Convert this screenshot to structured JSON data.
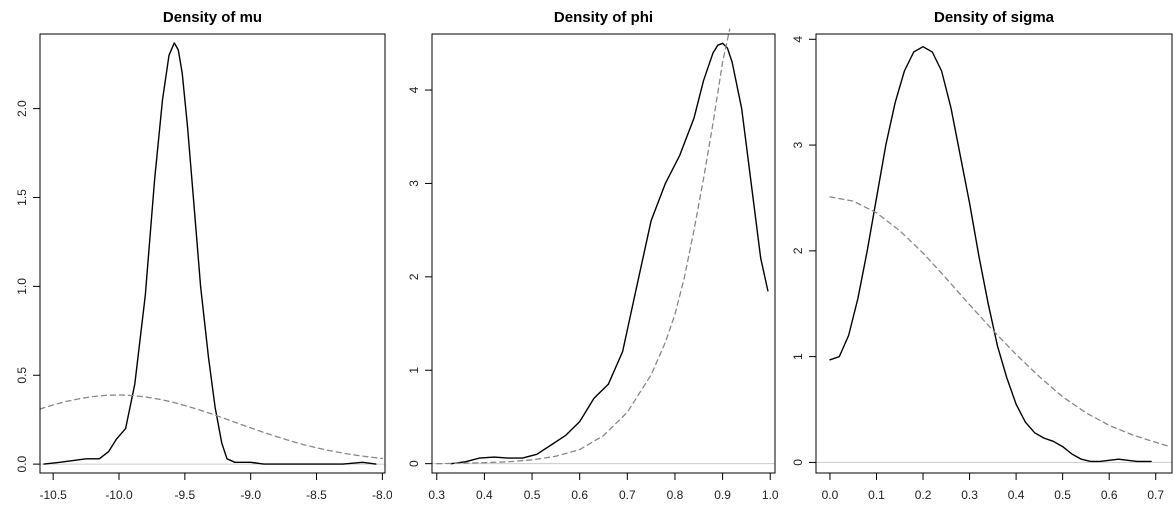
{
  "chart_data": [
    {
      "type": "line",
      "title": "Density of mu",
      "xlabel": "",
      "ylabel": "",
      "xlim": [
        -10.6,
        -7.98
      ],
      "ylim": [
        -0.05,
        2.42
      ],
      "xticks": [
        -10.5,
        -10.0,
        -9.5,
        -9.0,
        -8.5,
        -8.0
      ],
      "xtick_labels": [
        "-10.5",
        "-10.0",
        "-9.5",
        "-9.0",
        "-8.5",
        "-8.0"
      ],
      "yticks": [
        0.0,
        0.5,
        1.0,
        1.5,
        2.0
      ],
      "ytick_labels": [
        "0.0",
        "0.5",
        "1.0",
        "1.5",
        "2.0"
      ],
      "zero_line": true,
      "series": [
        {
          "style": "solid",
          "color": "#000000",
          "x": [
            -10.57,
            -10.45,
            -10.35,
            -10.25,
            -10.15,
            -10.08,
            -10.02,
            -9.95,
            -9.88,
            -9.8,
            -9.73,
            -9.67,
            -9.62,
            -9.58,
            -9.55,
            -9.52,
            -9.48,
            -9.43,
            -9.38,
            -9.32,
            -9.27,
            -9.22,
            -9.18,
            -9.12,
            -9.0,
            -8.9,
            -8.75,
            -8.6,
            -8.45,
            -8.3,
            -8.15,
            -8.05
          ],
          "y": [
            0.0,
            0.01,
            0.02,
            0.03,
            0.03,
            0.07,
            0.14,
            0.2,
            0.45,
            0.95,
            1.6,
            2.05,
            2.3,
            2.37,
            2.33,
            2.2,
            1.9,
            1.45,
            1.0,
            0.6,
            0.32,
            0.12,
            0.03,
            0.01,
            0.01,
            0.0,
            0.0,
            0.0,
            0.0,
            0.0,
            0.01,
            0.0
          ]
        },
        {
          "style": "dashed",
          "color": "#888888",
          "x": [
            -10.6,
            -10.5,
            -10.4,
            -10.3,
            -10.2,
            -10.1,
            -10.0,
            -9.9,
            -9.8,
            -9.7,
            -9.6,
            -9.5,
            -9.4,
            -9.3,
            -9.2,
            -9.1,
            -9.0,
            -8.9,
            -8.8,
            -8.7,
            -8.6,
            -8.5,
            -8.4,
            -8.3,
            -8.2,
            -8.1,
            -8.0
          ],
          "y": [
            0.31,
            0.333,
            0.353,
            0.368,
            0.38,
            0.387,
            0.389,
            0.386,
            0.378,
            0.366,
            0.35,
            0.33,
            0.308,
            0.283,
            0.257,
            0.23,
            0.204,
            0.178,
            0.154,
            0.131,
            0.11,
            0.092,
            0.076,
            0.062,
            0.05,
            0.04,
            0.032
          ]
        }
      ]
    },
    {
      "type": "line",
      "title": "Density of phi",
      "xlabel": "",
      "ylabel": "",
      "xlim": [
        0.29,
        1.01
      ],
      "ylim": [
        -0.1,
        4.6
      ],
      "xticks": [
        0.3,
        0.4,
        0.5,
        0.6,
        0.7,
        0.8,
        0.9,
        1.0
      ],
      "xtick_labels": [
        "0.3",
        "0.4",
        "0.5",
        "0.6",
        "0.7",
        "0.8",
        "0.9",
        "1.0"
      ],
      "yticks": [
        0,
        1,
        2,
        3,
        4
      ],
      "ytick_labels": [
        "0",
        "1",
        "2",
        "3",
        "4"
      ],
      "zero_line": true,
      "series": [
        {
          "style": "solid",
          "color": "#000000",
          "x": [
            0.33,
            0.36,
            0.39,
            0.42,
            0.45,
            0.48,
            0.51,
            0.54,
            0.57,
            0.6,
            0.63,
            0.66,
            0.69,
            0.72,
            0.75,
            0.78,
            0.81,
            0.84,
            0.86,
            0.88,
            0.89,
            0.9,
            0.91,
            0.92,
            0.94,
            0.96,
            0.98,
            0.995
          ],
          "y": [
            0.0,
            0.02,
            0.06,
            0.07,
            0.06,
            0.06,
            0.1,
            0.2,
            0.3,
            0.45,
            0.7,
            0.85,
            1.2,
            1.9,
            2.6,
            3.0,
            3.3,
            3.7,
            4.1,
            4.4,
            4.48,
            4.5,
            4.45,
            4.3,
            3.8,
            3.0,
            2.2,
            1.85
          ]
        },
        {
          "style": "dashed",
          "color": "#888888",
          "x": [
            0.3,
            0.35,
            0.4,
            0.45,
            0.5,
            0.55,
            0.6,
            0.65,
            0.7,
            0.75,
            0.78,
            0.8,
            0.82,
            0.84,
            0.86,
            0.88,
            0.9,
            0.915
          ],
          "y": [
            0.0,
            0.005,
            0.01,
            0.02,
            0.04,
            0.08,
            0.15,
            0.3,
            0.55,
            0.95,
            1.3,
            1.6,
            2.0,
            2.5,
            3.05,
            3.65,
            4.3,
            4.65
          ]
        }
      ]
    },
    {
      "type": "line",
      "title": "Density of sigma",
      "xlabel": "",
      "ylabel": "",
      "xlim": [
        -0.03,
        0.735
      ],
      "ylim": [
        -0.1,
        4.05
      ],
      "xticks": [
        0.0,
        0.1,
        0.2,
        0.3,
        0.4,
        0.5,
        0.6,
        0.7
      ],
      "xtick_labels": [
        "0.0",
        "0.1",
        "0.2",
        "0.3",
        "0.4",
        "0.5",
        "0.6",
        "0.7"
      ],
      "yticks": [
        0,
        1,
        2,
        3,
        4
      ],
      "ytick_labels": [
        "0",
        "1",
        "2",
        "3",
        "4"
      ],
      "zero_line": true,
      "series": [
        {
          "style": "solid",
          "color": "#000000",
          "x": [
            0.0,
            0.02,
            0.04,
            0.06,
            0.08,
            0.1,
            0.12,
            0.14,
            0.16,
            0.18,
            0.2,
            0.22,
            0.24,
            0.26,
            0.28,
            0.3,
            0.32,
            0.34,
            0.36,
            0.38,
            0.4,
            0.42,
            0.44,
            0.46,
            0.48,
            0.5,
            0.52,
            0.54,
            0.56,
            0.58,
            0.6,
            0.62,
            0.64,
            0.66,
            0.69
          ],
          "y": [
            0.97,
            1.0,
            1.2,
            1.55,
            2.0,
            2.5,
            3.0,
            3.4,
            3.7,
            3.88,
            3.93,
            3.88,
            3.7,
            3.35,
            2.9,
            2.45,
            1.95,
            1.5,
            1.1,
            0.8,
            0.55,
            0.38,
            0.28,
            0.23,
            0.2,
            0.15,
            0.08,
            0.03,
            0.01,
            0.01,
            0.02,
            0.03,
            0.02,
            0.01,
            0.01
          ]
        },
        {
          "style": "dashed",
          "color": "#888888",
          "x": [
            0.0,
            0.05,
            0.1,
            0.15,
            0.2,
            0.25,
            0.3,
            0.35,
            0.4,
            0.45,
            0.5,
            0.55,
            0.6,
            0.65,
            0.7,
            0.73
          ],
          "y": [
            2.51,
            2.47,
            2.36,
            2.19,
            1.98,
            1.74,
            1.49,
            1.25,
            1.02,
            0.81,
            0.62,
            0.47,
            0.35,
            0.26,
            0.19,
            0.15
          ]
        }
      ]
    }
  ]
}
